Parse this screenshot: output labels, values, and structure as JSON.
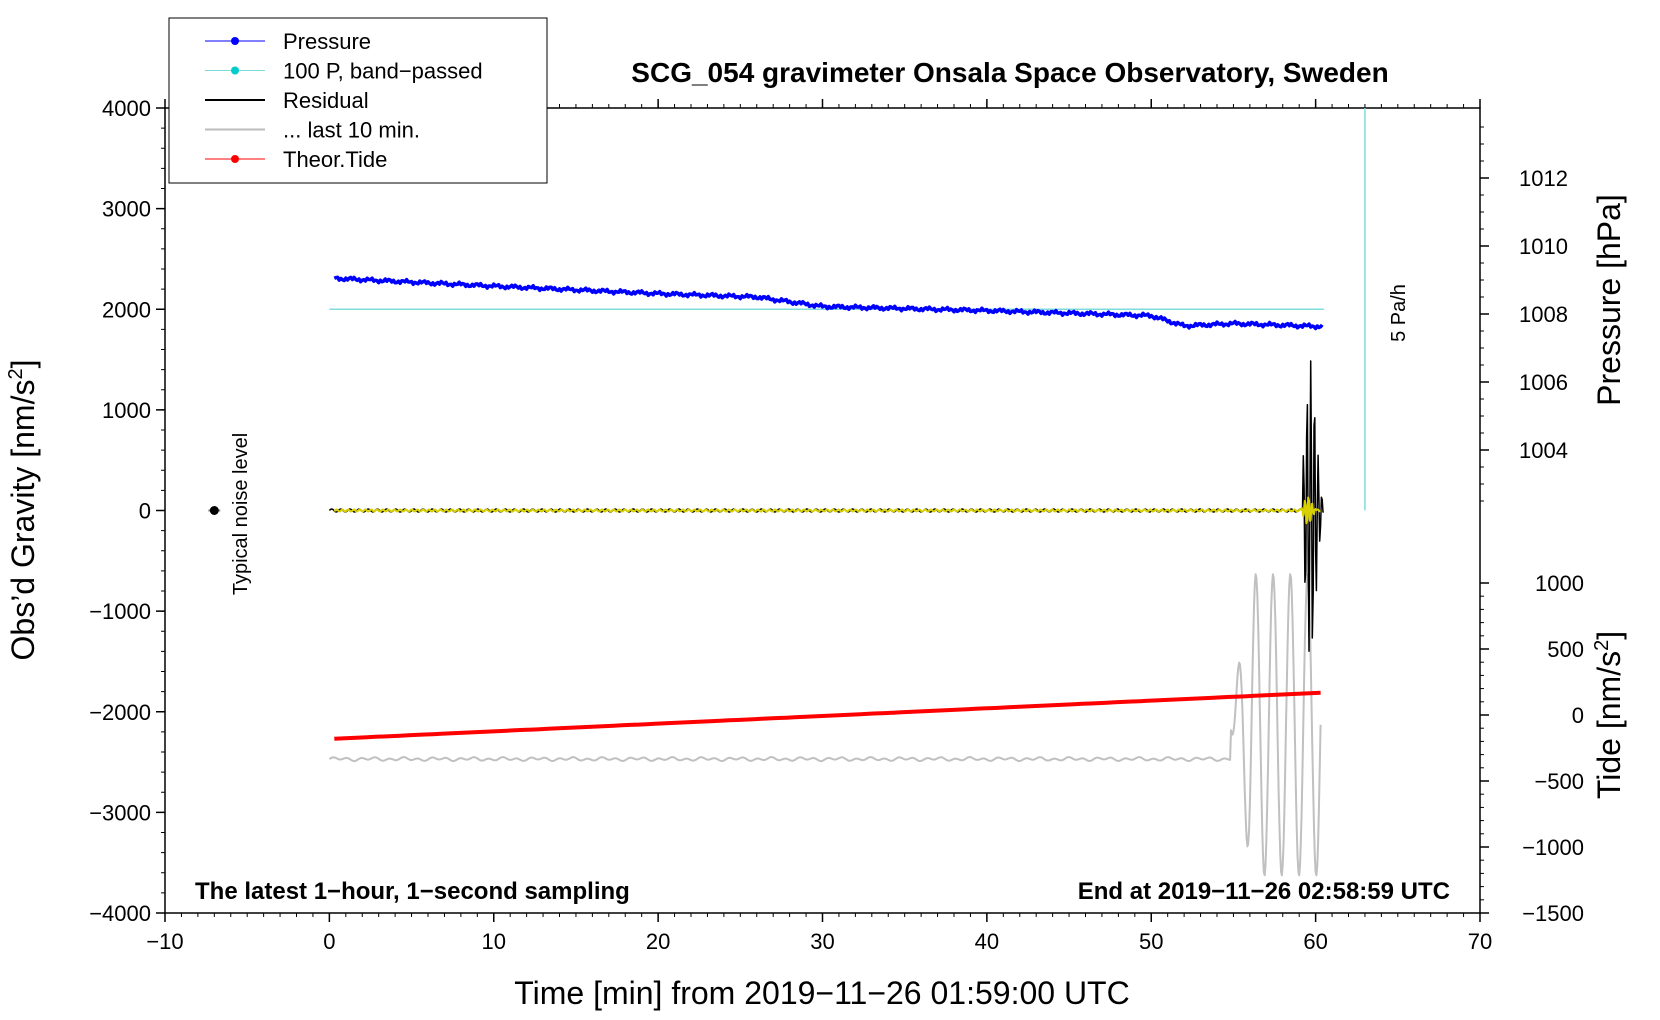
{
  "chart_data": {
    "type": "line",
    "title": "SCG_054 gravimeter Onsala Space Observatory, Sweden",
    "xlabel": "Time [min] from 2019−11−26 01:59:00 UTC",
    "ylabel_left": "Obs’d Gravity [nm/s",
    "ylabel_left_sup": "2",
    "ylabel_left_close": "]",
    "ylabel_right_pressure": "Pressure [hPa]",
    "ylabel_right_tide": "Tide [nm/s",
    "ylabel_right_tide_sup": "2",
    "ylabel_right_tide_close": "]",
    "xlim": [
      -10,
      70
    ],
    "ylim_left": [
      -4000,
      4000
    ],
    "pressure_axis": {
      "range": [
        1002,
        1014
      ],
      "ticks": [
        1004,
        1006,
        1008,
        1010,
        1012
      ],
      "tick_labels": [
        "1004",
        "1006",
        "1008",
        "1010",
        "1012"
      ]
    },
    "tide_axis": {
      "range": [
        -1500,
        1000
      ],
      "ticks": [
        -1500,
        -1000,
        -500,
        0,
        500,
        1000
      ],
      "tick_labels": [
        "−1500",
        "−1000",
        "−500",
        "0",
        "500",
        "1000"
      ]
    },
    "x_ticks": [
      -10,
      0,
      10,
      20,
      30,
      40,
      50,
      60,
      70
    ],
    "x_tick_labels": [
      "−10",
      "0",
      "10",
      "20",
      "30",
      "40",
      "50",
      "60",
      "70"
    ],
    "y_ticks": [
      -4000,
      -3000,
      -2000,
      -1000,
      0,
      1000,
      2000,
      3000,
      4000
    ],
    "y_tick_labels": [
      "−4000",
      "−3000",
      "−2000",
      "−1000",
      "0",
      "1000",
      "2000",
      "3000",
      "4000"
    ],
    "legend": {
      "position": "top-left",
      "entries": [
        {
          "label": "Pressure",
          "color": "#0000ff",
          "marker": true
        },
        {
          "label": "100 P, band−passed",
          "color": "#00cccc",
          "marker": true
        },
        {
          "label": "Residual",
          "color": "#000000",
          "marker": false
        },
        {
          "label": "... last 10 min.",
          "color": "#bbbbbb",
          "marker": false
        },
        {
          "label": "Theor.Tide",
          "color": "#ff0000",
          "marker": true
        }
      ]
    },
    "series": [
      {
        "name": "Pressure",
        "axis": "pressure_hPa",
        "color": "#0000ff",
        "x": [
          0.3,
          10,
          20,
          26,
          30,
          40,
          50,
          52,
          55,
          60.5
        ],
        "y": [
          1009.05,
          1008.82,
          1008.6,
          1008.5,
          1008.22,
          1008.1,
          1007.95,
          1007.65,
          1007.72,
          1007.63
        ]
      },
      {
        "name": "100 P, band−passed",
        "color": "#00cccc",
        "x": [
          0,
          60.5
        ],
        "y": [
          2000,
          2000
        ]
      },
      {
        "name": "Residual",
        "color": "#000000",
        "note": "approx. 0 until 59 min, burst up to +1800 / −1200 at 59–60 min"
      },
      {
        "name": "Residual (filtered)",
        "color": "#d8d000",
        "note": "approx. 0 with small burst near 59.5 min"
      },
      {
        "name": "... last 10 min.",
        "color": "#bbbbbb",
        "note": "oscillation starting at ~55 min, range −3600 to −650 (left scale)"
      },
      {
        "name": "Theor.Tide",
        "axis": "tide_nm_s2",
        "color": "#ff0000",
        "x": [
          0.3,
          60.5
        ],
        "y": [
          -180,
          170
        ]
      }
    ],
    "vertical_marker": {
      "x": 63,
      "from": 0,
      "to": 4000,
      "color": "#7fdcdc",
      "label": "5 Pa/h"
    },
    "noise_marker": {
      "x": -7,
      "y": 0,
      "label": "Typical noise level"
    },
    "annotations": {
      "bottom_left": "The latest 1−hour, 1−second sampling",
      "bottom_right": "End at 2019−11−26 02:58:59 UTC"
    }
  }
}
